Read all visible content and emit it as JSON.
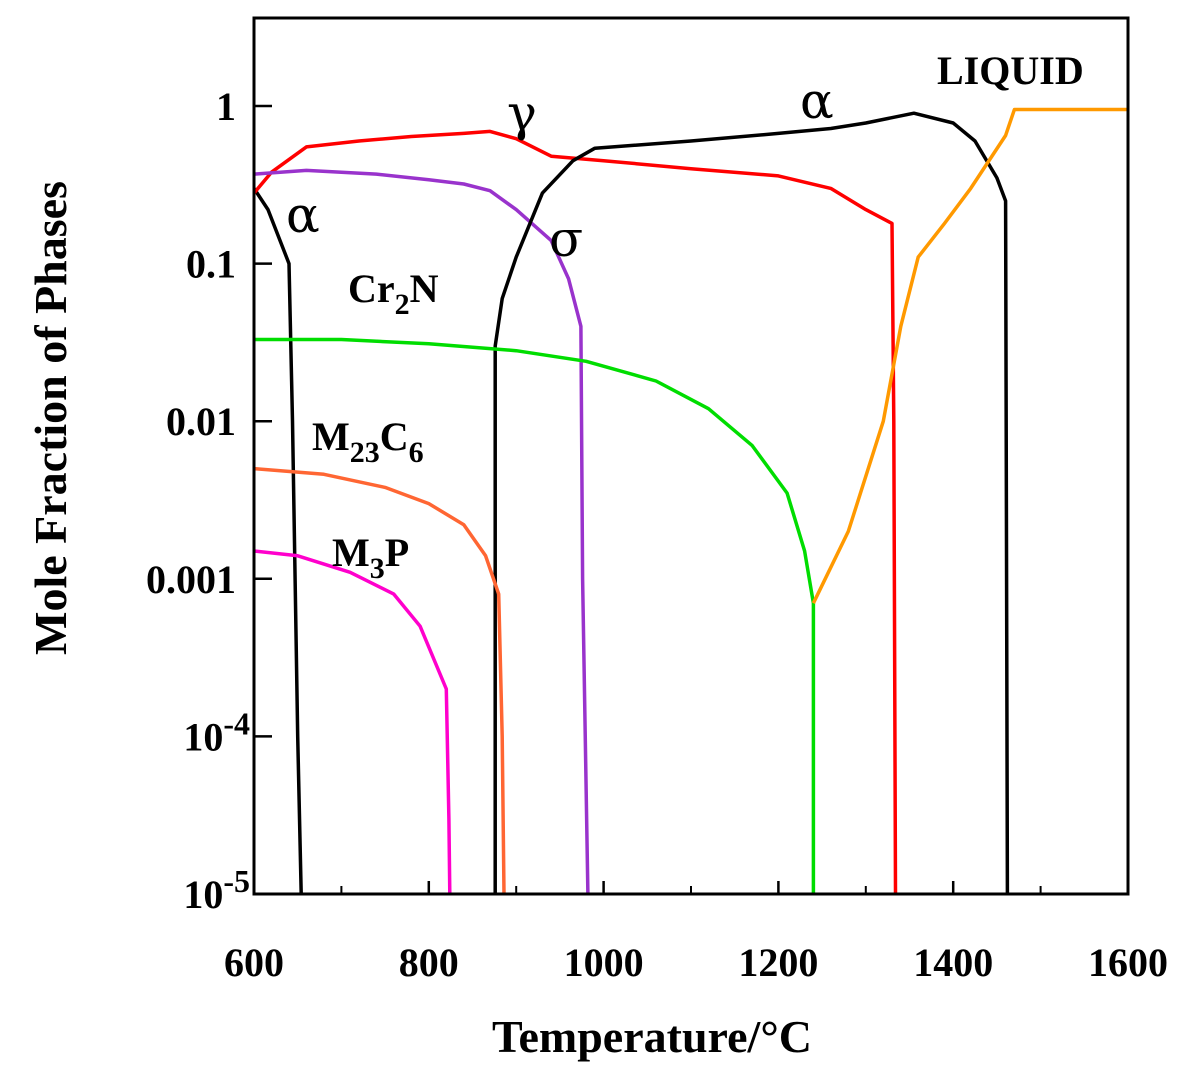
{
  "chart_data": {
    "type": "line",
    "xlabel": "Temperature/°C",
    "ylabel": "Mole Fraction of Phases",
    "xlim": [
      600,
      1600
    ],
    "ylim": [
      1e-05,
      4
    ],
    "yscale": "log",
    "grid": false,
    "x_ticks": [
      {
        "value": 600,
        "label": "600"
      },
      {
        "value": 800,
        "label": "800"
      },
      {
        "value": 1000,
        "label": "1000"
      },
      {
        "value": 1200,
        "label": "1200"
      },
      {
        "value": 1400,
        "label": "1400"
      },
      {
        "value": 1600,
        "label": "1600"
      }
    ],
    "y_ticks": [
      {
        "value": 1,
        "label": "1"
      },
      {
        "value": 0.1,
        "label": "0.1"
      },
      {
        "value": 0.01,
        "label": "0.01"
      },
      {
        "value": 0.001,
        "label": "0.001"
      },
      {
        "value": 0.0001,
        "label": "10",
        "exp": "-4"
      },
      {
        "value": 1e-05,
        "label": "10",
        "exp": "-5"
      }
    ],
    "series": [
      {
        "id": "ferrite-low",
        "label": "α",
        "color": "#000000",
        "points": [
          [
            600,
            0.3
          ],
          [
            616,
            0.22
          ],
          [
            640,
            0.1
          ],
          [
            644,
            0.01
          ],
          [
            650,
            0.0001
          ],
          [
            654,
            1e-05
          ]
        ]
      },
      {
        "id": "austenite",
        "label": "γ",
        "color": "#ff0000",
        "points": [
          [
            600,
            0.28
          ],
          [
            620,
            0.38
          ],
          [
            660,
            0.55
          ],
          [
            720,
            0.6
          ],
          [
            780,
            0.64
          ],
          [
            840,
            0.67
          ],
          [
            870,
            0.69
          ],
          [
            900,
            0.62
          ],
          [
            940,
            0.48
          ],
          [
            1000,
            0.45
          ],
          [
            1100,
            0.4
          ],
          [
            1200,
            0.36
          ],
          [
            1260,
            0.3
          ],
          [
            1300,
            0.22
          ],
          [
            1330,
            0.18
          ],
          [
            1332,
            0.01
          ],
          [
            1334,
            1e-05
          ]
        ]
      },
      {
        "id": "sigma",
        "label": "σ",
        "color": "#9933cc",
        "points": [
          [
            600,
            0.37
          ],
          [
            660,
            0.39
          ],
          [
            740,
            0.37
          ],
          [
            800,
            0.34
          ],
          [
            840,
            0.32
          ],
          [
            870,
            0.29
          ],
          [
            900,
            0.22
          ],
          [
            940,
            0.14
          ],
          [
            960,
            0.08
          ],
          [
            974,
            0.04
          ],
          [
            976,
            0.001
          ],
          [
            982,
            1e-05
          ]
        ]
      },
      {
        "id": "ferrite-high",
        "label": "α",
        "color": "#000000",
        "points": [
          [
            876,
            1e-05
          ],
          [
            876,
            0.03
          ],
          [
            884,
            0.06
          ],
          [
            900,
            0.11
          ],
          [
            930,
            0.28
          ],
          [
            965,
            0.45
          ],
          [
            990,
            0.54
          ],
          [
            1100,
            0.6
          ],
          [
            1200,
            0.67
          ],
          [
            1260,
            0.72
          ],
          [
            1300,
            0.78
          ],
          [
            1355,
            0.9
          ],
          [
            1400,
            0.78
          ],
          [
            1425,
            0.6
          ],
          [
            1450,
            0.35
          ],
          [
            1460,
            0.25
          ],
          [
            1462,
            1e-05
          ]
        ]
      },
      {
        "id": "cr2n",
        "label": "Cr",
        "sub": "2",
        "suffix": "N",
        "color": "#00dd00",
        "points": [
          [
            600,
            0.033
          ],
          [
            700,
            0.033
          ],
          [
            800,
            0.031
          ],
          [
            900,
            0.028
          ],
          [
            980,
            0.024
          ],
          [
            1060,
            0.018
          ],
          [
            1120,
            0.012
          ],
          [
            1170,
            0.007
          ],
          [
            1210,
            0.0035
          ],
          [
            1230,
            0.0015
          ],
          [
            1240,
            0.0007
          ],
          [
            1240,
            1e-05
          ]
        ]
      },
      {
        "id": "m23c6",
        "label": "M",
        "sub": "23",
        "suffix": "C",
        "sub2": "6",
        "color": "#ff6633",
        "points": [
          [
            600,
            0.005
          ],
          [
            680,
            0.0046
          ],
          [
            750,
            0.0038
          ],
          [
            800,
            0.003
          ],
          [
            840,
            0.0022
          ],
          [
            865,
            0.0014
          ],
          [
            880,
            0.0008
          ],
          [
            884,
            0.0001
          ],
          [
            886,
            1e-05
          ]
        ]
      },
      {
        "id": "m3p",
        "label": "M",
        "sub": "3",
        "suffix": "P",
        "color": "#ff00cc",
        "points": [
          [
            600,
            0.0015
          ],
          [
            650,
            0.0014
          ],
          [
            710,
            0.0011
          ],
          [
            760,
            0.0008
          ],
          [
            790,
            0.0005
          ],
          [
            820,
            0.0002
          ],
          [
            823,
            3e-05
          ],
          [
            824,
            1e-05
          ]
        ]
      },
      {
        "id": "liquid",
        "label": "LIQUID",
        "color": "#ff9900",
        "points": [
          [
            1240,
            0.0007
          ],
          [
            1280,
            0.002
          ],
          [
            1320,
            0.01
          ],
          [
            1340,
            0.04
          ],
          [
            1360,
            0.11
          ],
          [
            1390,
            0.18
          ],
          [
            1420,
            0.3
          ],
          [
            1460,
            0.65
          ],
          [
            1470,
            0.95
          ],
          [
            1600,
            0.95
          ]
        ]
      }
    ]
  }
}
